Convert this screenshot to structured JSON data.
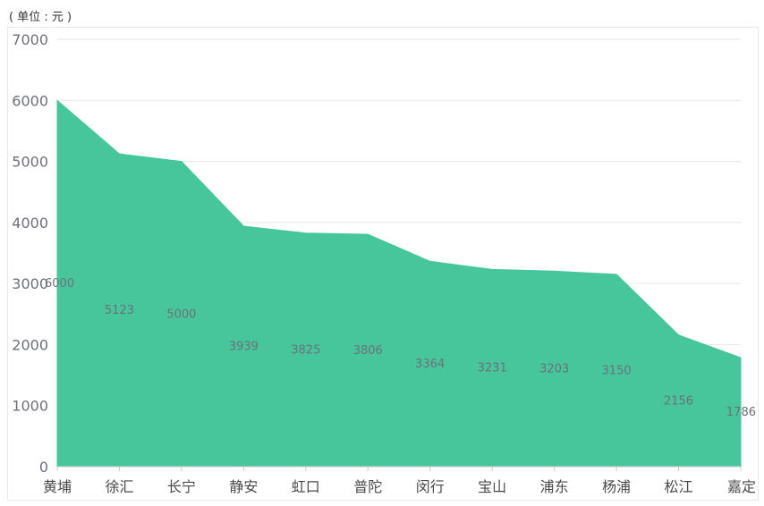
{
  "unit_label": "( 单位 : 元 )",
  "colors": {
    "area": "#47c69c",
    "grid": "#e6e6e6",
    "axis": "#cccccc"
  },
  "chart_data": {
    "type": "area",
    "title": "",
    "xlabel": "",
    "ylabel": "",
    "unit": "( 单位 : 元 )",
    "categories": [
      "黄埔",
      "徐汇",
      "长宁",
      "静安",
      "虹口",
      "普陀",
      "闵行",
      "宝山",
      "浦东",
      "杨浦",
      "松江",
      "嘉定"
    ],
    "values": [
      6000,
      5123,
      5000,
      3939,
      3825,
      3806,
      3364,
      3231,
      3203,
      3150,
      2156,
      1786
    ],
    "ylim": [
      0,
      7000
    ],
    "yticks": [
      0,
      1000,
      2000,
      3000,
      4000,
      5000,
      6000,
      7000
    ],
    "grid": true,
    "data_labels": true
  }
}
